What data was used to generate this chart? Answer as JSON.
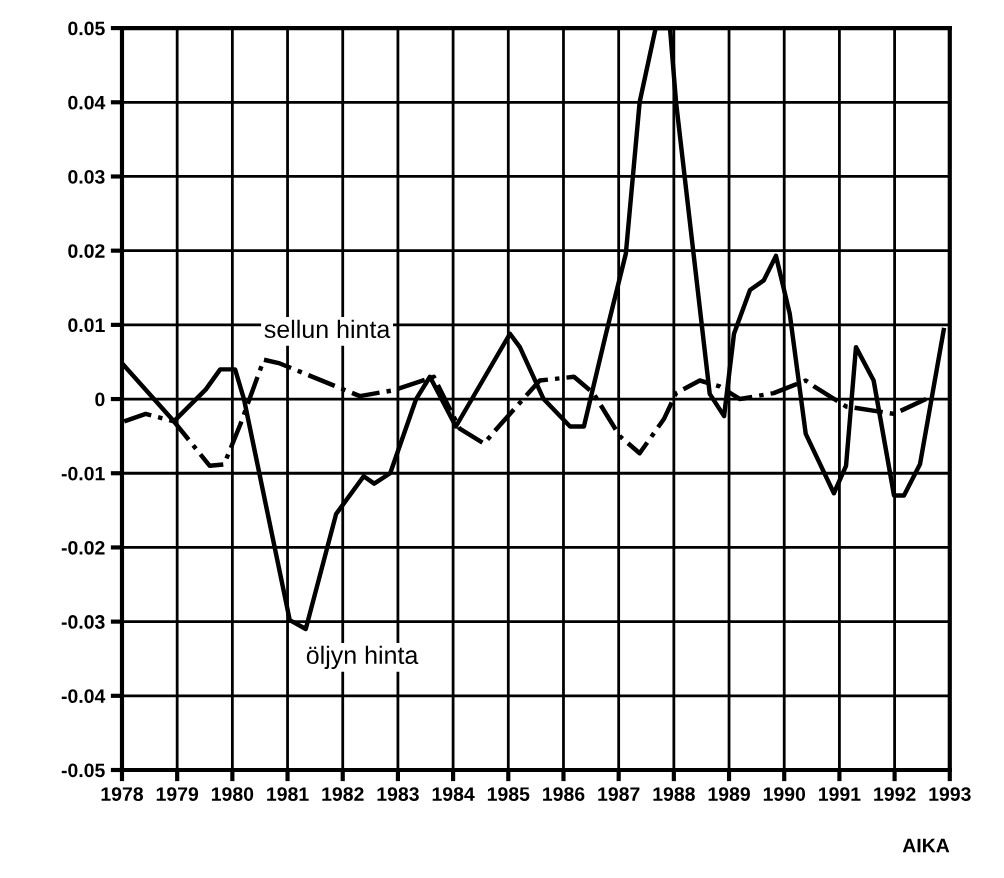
{
  "chart_data": {
    "type": "line",
    "xlabel": "AIKA",
    "xlim": [
      1978,
      1993
    ],
    "ylim": [
      -0.05,
      0.05
    ],
    "xticks": [
      1978,
      1979,
      1980,
      1981,
      1982,
      1983,
      1984,
      1985,
      1986,
      1987,
      1988,
      1989,
      1990,
      1991,
      1992,
      1993
    ],
    "yticks": [
      -0.05,
      -0.04,
      -0.03,
      -0.02,
      -0.01,
      0,
      0.01,
      0.02,
      0.03,
      0.04,
      0.05
    ],
    "grid": true,
    "legend": false,
    "marker": "none",
    "series": [
      {
        "name": "öljyn hinta",
        "color": "#000000",
        "line_style": "solid",
        "x": [
          1978.04,
          1978.94,
          1979.52,
          1979.78,
          1980.05,
          1980.21,
          1981.04,
          1981.33,
          1981.88,
          1982.38,
          1982.57,
          1982.86,
          1983.33,
          1983.58,
          1984.05,
          1985.03,
          1985.21,
          1985.64,
          1986.12,
          1986.37,
          1986.77,
          1987.13,
          1987.38,
          1987.67,
          1987.93,
          1988.04,
          1988.65,
          1988.91,
          1989.09,
          1989.38,
          1989.63,
          1989.85,
          1990.1,
          1990.39,
          1990.9,
          1991.12,
          1991.3,
          1991.62,
          1991.99,
          1992.17,
          1992.46,
          1992.89
        ],
        "values": [
          0.0045,
          -0.003,
          0.0013,
          0.004,
          0.004,
          0.0,
          -0.0298,
          -0.031,
          -0.0155,
          -0.0104,
          -0.0114,
          -0.01,
          0.0,
          0.003,
          -0.0037,
          0.0088,
          0.007,
          0.0,
          -0.0037,
          -0.0037,
          0.0088,
          0.0196,
          0.04,
          0.05,
          0.05,
          0.04,
          0.0007,
          -0.0023,
          0.0088,
          0.0147,
          0.016,
          0.0193,
          0.0115,
          -0.0047,
          -0.0127,
          -0.009,
          0.007,
          0.0025,
          -0.013,
          -0.013,
          -0.0088,
          0.0093
        ]
      },
      {
        "name": "sellun hinta",
        "color": "#000000",
        "line_style": "dashdot",
        "x": [
          1978.04,
          1978.43,
          1978.94,
          1979.59,
          1979.85,
          1980.14,
          1980.57,
          1980.86,
          1982.31,
          1982.93,
          1983.65,
          1984.12,
          1984.56,
          1984.85,
          1985.57,
          1986.19,
          1986.54,
          1987.02,
          1987.38,
          1987.82,
          1988.04,
          1988.47,
          1988.83,
          1989.2,
          1989.81,
          1990.39,
          1990.54,
          1991.12,
          1991.99,
          1992.57
        ],
        "values": [
          -0.003,
          -0.002,
          -0.003,
          -0.009,
          -0.0088,
          -0.0035,
          0.0053,
          0.0048,
          0.0004,
          0.0012,
          0.003,
          -0.004,
          -0.006,
          -0.0035,
          0.0025,
          0.003,
          0.0008,
          -0.005,
          -0.0073,
          -0.0027,
          0.0008,
          0.0025,
          0.0017,
          0.0,
          0.0008,
          0.0025,
          0.0017,
          -0.001,
          -0.002,
          0.0
        ]
      }
    ]
  }
}
